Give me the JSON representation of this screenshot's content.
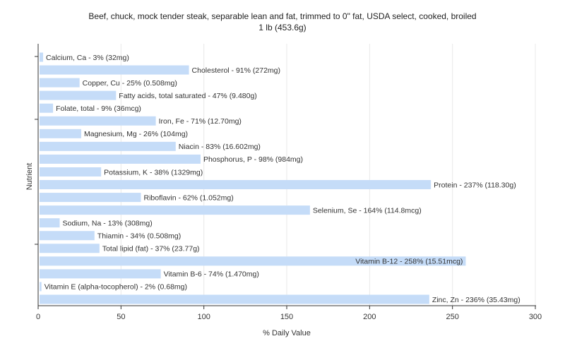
{
  "chart_data": {
    "type": "bar",
    "orientation": "horizontal",
    "title": "Beef, chuck, mock tender steak, separable lean and fat, trimmed to 0\" fat, USDA select, cooked, broiled",
    "subtitle": "1 lb (453.6g)",
    "xlabel": "% Daily Value",
    "ylabel": "Nutrient",
    "xlim": [
      0,
      300
    ],
    "xticks": [
      "0",
      "50",
      "100",
      "150",
      "200",
      "250",
      "300"
    ],
    "grid": true,
    "legend": "none",
    "bar_color": "#c5dcf8",
    "categories": [
      "Calcium, Ca",
      "Cholesterol",
      "Copper, Cu",
      "Fatty acids, total saturated",
      "Folate, total",
      "Iron, Fe",
      "Magnesium, Mg",
      "Niacin",
      "Phosphorus, P",
      "Potassium, K",
      "Protein",
      "Riboflavin",
      "Selenium, Se",
      "Sodium, Na",
      "Thiamin",
      "Total lipid (fat)",
      "Vitamin B-12",
      "Vitamin B-6",
      "Vitamin E (alpha-tocopherol)",
      "Zinc, Zn"
    ],
    "values": [
      3,
      91,
      25,
      47,
      9,
      71,
      26,
      83,
      98,
      38,
      237,
      62,
      164,
      13,
      34,
      37,
      258,
      74,
      2,
      236
    ],
    "labels": [
      "Calcium, Ca - 3% (32mg)",
      "Cholesterol - 91% (272mg)",
      "Copper, Cu - 25% (0.508mg)",
      "Fatty acids, total saturated - 47% (9.480g)",
      "Folate, total - 9% (36mcg)",
      "Iron, Fe - 71% (12.70mg)",
      "Magnesium, Mg - 26% (104mg)",
      "Niacin - 83% (16.602mg)",
      "Phosphorus, P - 98% (984mg)",
      "Potassium, K - 38% (1329mg)",
      "Protein - 237% (118.30g)",
      "Riboflavin - 62% (1.052mg)",
      "Selenium, Se - 164% (114.8mcg)",
      "Sodium, Na - 13% (308mg)",
      "Thiamin - 34% (0.508mg)",
      "Total lipid (fat) - 37% (23.77g)",
      "Vitamin B-12 - 258% (15.51mcg)",
      "Vitamin B-6 - 74% (1.470mg)",
      "Vitamin E (alpha-tocopherol) - 2% (0.68mg)",
      "Zinc, Zn - 236% (35.43mg)"
    ],
    "label_inside": [
      false,
      false,
      false,
      false,
      false,
      false,
      false,
      false,
      false,
      false,
      false,
      false,
      false,
      false,
      false,
      false,
      true,
      false,
      false,
      false
    ]
  }
}
